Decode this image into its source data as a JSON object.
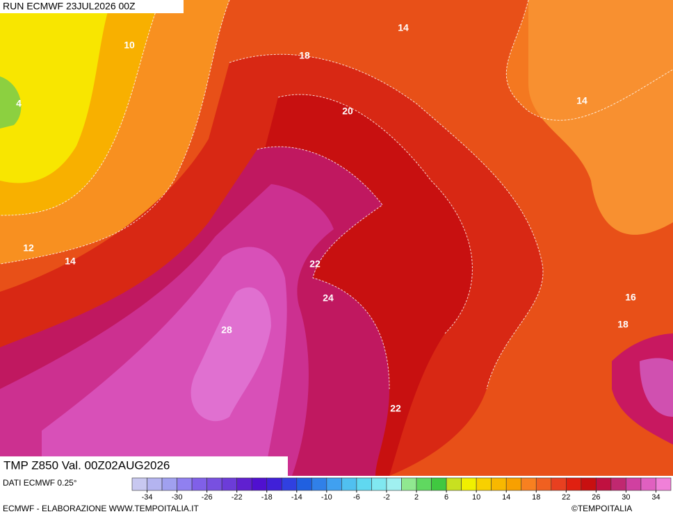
{
  "header": {
    "run": "RUN ECMWF 23JUL2026 00Z",
    "field": "TMP Z850 Val. 00Z02AUG2026"
  },
  "map": {
    "labels": [
      "14",
      "10",
      "18",
      "4",
      "14",
      "20",
      "12",
      "14",
      "22",
      "24",
      "16",
      "18",
      "28",
      "22"
    ]
  },
  "footer": {
    "source": "DATI ECMWF 0.25°",
    "credit": "ECMWF - ELABORAZIONE WWW.TEMPOITALIA.IT",
    "copyright": "©TEMPOITALIA"
  },
  "colorbar": {
    "range": [
      -36,
      36
    ],
    "ticks": [
      -34,
      -30,
      -26,
      -22,
      -18,
      -14,
      -10,
      -6,
      -2,
      2,
      6,
      10,
      14,
      18,
      22,
      26,
      30,
      34
    ],
    "colors": [
      "#c8c8f0",
      "#b4b4f0",
      "#a0a0f0",
      "#9080f0",
      "#8060e8",
      "#7850e0",
      "#6c3cd8",
      "#6020d0",
      "#5010d0",
      "#4020d8",
      "#3040e0",
      "#2060e0",
      "#3080e8",
      "#40a0f0",
      "#50c0f0",
      "#60d8f0",
      "#80e8f0",
      "#a0f0f0",
      "#90e890",
      "#60d860",
      "#40c840",
      "#c8e020",
      "#f0f000",
      "#f8d000",
      "#f8b800",
      "#f8a000",
      "#f88020",
      "#f06020",
      "#e84020",
      "#e02010",
      "#c81010",
      "#c01040",
      "#c02870",
      "#d040a0",
      "#e060c0",
      "#f080d8"
    ]
  }
}
